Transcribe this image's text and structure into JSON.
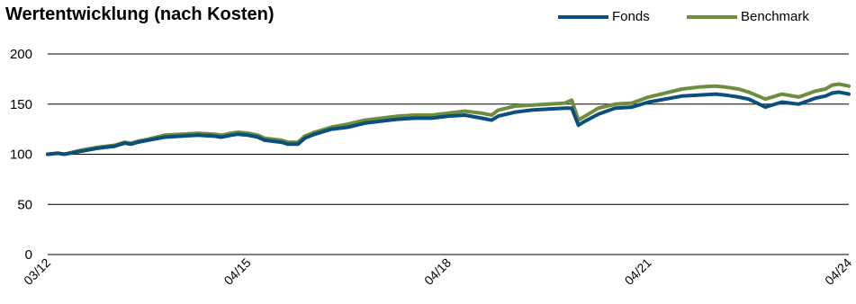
{
  "chart_data": {
    "type": "line",
    "title": "Wertentwicklung (nach Kosten)",
    "xlabel": "",
    "ylabel": "",
    "ylim": [
      0,
      200
    ],
    "yticks": [
      0,
      50,
      100,
      150,
      200
    ],
    "ytick_labels": [
      "0",
      "50",
      "100",
      "150",
      "200"
    ],
    "x_range": [
      2012.25,
      2024.25
    ],
    "xtick_positions": [
      2012.25,
      2015.25,
      2018.25,
      2021.25,
      2024.25
    ],
    "xtick_labels": [
      "03/12",
      "04/15",
      "04/18",
      "04/21",
      "04/24"
    ],
    "grid": "horizontal",
    "legend_position": "top-right",
    "x": [
      2012.25,
      2012.4,
      2012.5,
      2012.75,
      2013.0,
      2013.25,
      2013.4,
      2013.5,
      2013.6,
      2013.75,
      2014.0,
      2014.25,
      2014.5,
      2014.75,
      2014.85,
      2015.0,
      2015.1,
      2015.25,
      2015.4,
      2015.5,
      2015.75,
      2015.85,
      2016.0,
      2016.1,
      2016.25,
      2016.5,
      2016.75,
      2017.0,
      2017.25,
      2017.5,
      2017.75,
      2018.0,
      2018.25,
      2018.5,
      2018.75,
      2018.9,
      2019.0,
      2019.25,
      2019.5,
      2019.75,
      2020.0,
      2020.1,
      2020.2,
      2020.3,
      2020.5,
      2020.75,
      2021.0,
      2021.25,
      2021.5,
      2021.75,
      2022.0,
      2022.25,
      2022.4,
      2022.5,
      2022.6,
      2022.75,
      2023.0,
      2023.25,
      2023.5,
      2023.75,
      2023.9,
      2024.0,
      2024.1,
      2024.25
    ],
    "series": [
      {
        "name": "Fonds",
        "color": "#0a4f7d",
        "values": [
          100,
          101,
          100,
          103,
          106,
          108,
          111,
          110,
          112,
          114,
          117,
          118,
          119,
          118,
          117,
          119,
          120,
          119,
          117,
          114,
          112,
          110,
          110,
          116,
          120,
          125,
          127,
          131,
          133,
          135,
          136,
          136,
          138,
          139,
          136,
          134,
          138,
          142,
          144,
          145,
          146,
          146,
          129,
          133,
          140,
          146,
          147,
          152,
          155,
          158,
          159,
          160,
          159,
          158,
          157,
          155,
          147,
          152,
          150,
          156,
          158,
          161,
          162,
          160
        ]
      },
      {
        "name": "Benchmark",
        "color": "#6e8d3d",
        "values": [
          100,
          101,
          100,
          104,
          107,
          109,
          112,
          111,
          113,
          115,
          119,
          120,
          121,
          120,
          119,
          121,
          122,
          121,
          119,
          116,
          114,
          112,
          112,
          118,
          122,
          127,
          130,
          134,
          136,
          138,
          139,
          139,
          141,
          143,
          141,
          139,
          144,
          148,
          149,
          150,
          151,
          154,
          134,
          138,
          146,
          150,
          151,
          157,
          161,
          165,
          167,
          168,
          167,
          166,
          165,
          162,
          155,
          160,
          157,
          163,
          165,
          169,
          170,
          168
        ]
      }
    ]
  }
}
